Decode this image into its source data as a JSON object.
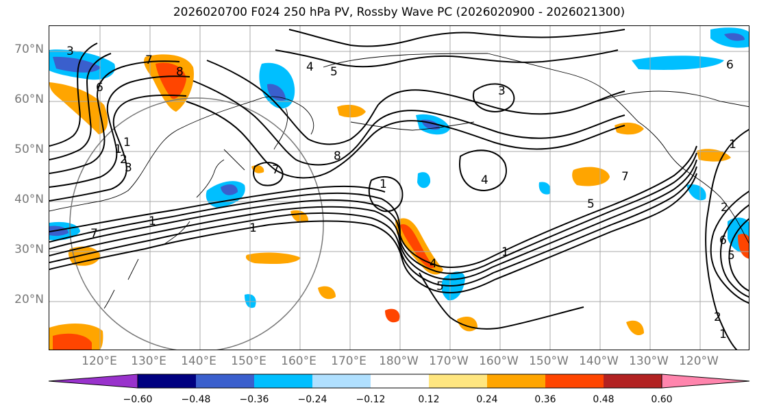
{
  "title": "2026020700 F024 250 hPa PV, Rossby Wave PC (2026020900 - 2026021300)",
  "map": {
    "lat_labels": [
      "70°N",
      "60°N",
      "50°N",
      "40°N",
      "30°N",
      "20°N"
    ],
    "lon_labels": [
      "120°E",
      "130°E",
      "140°E",
      "150°E",
      "160°E",
      "170°E",
      "180°W",
      "170°W",
      "160°W",
      "150°W",
      "140°W",
      "130°W",
      "120°W"
    ],
    "contour_labels": [
      "3",
      "4",
      "5",
      "6",
      "8",
      "7",
      "1",
      "2",
      "3",
      "1",
      "8",
      "7",
      "1",
      "1",
      "4",
      "5",
      "3",
      "6",
      "1",
      "2",
      "1",
      "1",
      "7",
      "5",
      "2",
      "1",
      "6",
      "7",
      "4",
      "5"
    ],
    "colors": {
      "positive_1": "#ffe680",
      "positive_2": "#ffa500",
      "positive_3": "#ff4500",
      "negative_1": "#b0e0ff",
      "negative_2": "#00bfff",
      "negative_3": "#3a5fcd"
    }
  },
  "colorbar": {
    "colors": [
      "#9932cc",
      "#000080",
      "#3a5fcd",
      "#00bfff",
      "#b0e0ff",
      "#ffffff",
      "#ffe680",
      "#ffa500",
      "#ff4500",
      "#b22222",
      "#ff85ad"
    ],
    "tick_labels": [
      "−0.60",
      "−0.48",
      "−0.36",
      "−0.24",
      "−0.12",
      "0.12",
      "0.24",
      "0.36",
      "0.48",
      "0.60"
    ]
  }
}
